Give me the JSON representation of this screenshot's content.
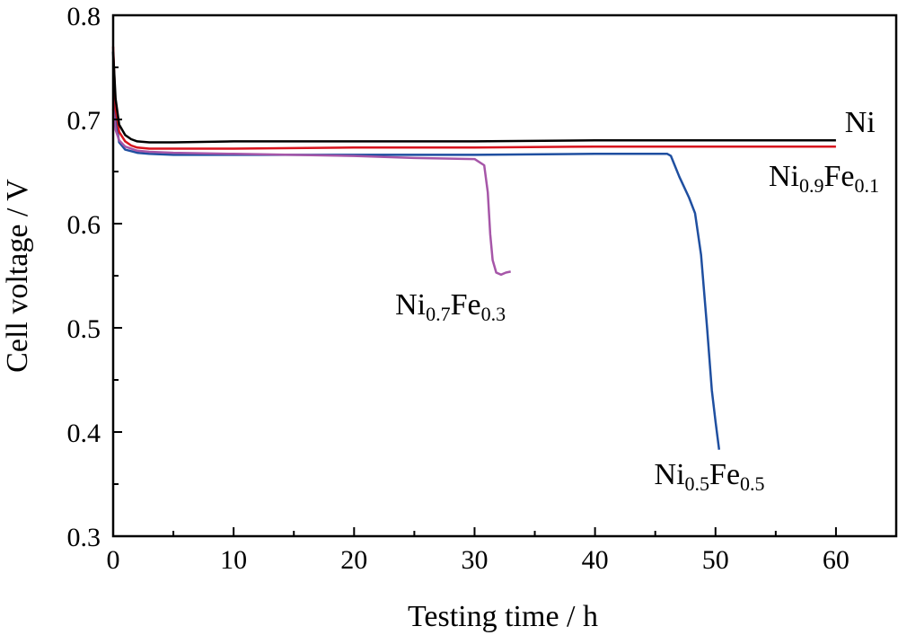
{
  "chart_data": {
    "type": "line",
    "title": "",
    "xlabel": "Testing time / h",
    "ylabel": "Cell voltage / V",
    "xlim": [
      0,
      65
    ],
    "ylim": [
      0.3,
      0.8
    ],
    "xticks": [
      "0",
      "10",
      "20",
      "30",
      "40",
      "50",
      "60"
    ],
    "xtick_values": [
      0,
      10,
      20,
      30,
      40,
      50,
      60
    ],
    "yticks": [
      "0.3",
      "0.4",
      "0.5",
      "0.6",
      "0.7",
      "0.8"
    ],
    "ytick_values": [
      0.3,
      0.4,
      0.5,
      0.6,
      0.7,
      0.8
    ],
    "grid": false,
    "series": [
      {
        "name": "Ni",
        "color": "#000000",
        "x": [
          0,
          0.2,
          0.5,
          1,
          1.5,
          2,
          3,
          5,
          10,
          20,
          30,
          40,
          50,
          60
        ],
        "y": [
          0.765,
          0.72,
          0.695,
          0.685,
          0.681,
          0.679,
          0.678,
          0.678,
          0.679,
          0.679,
          0.679,
          0.68,
          0.68,
          0.68
        ]
      },
      {
        "name": "Ni0.9Fe0.1",
        "color": "#d7141e",
        "x": [
          0,
          0.2,
          0.5,
          1,
          1.5,
          2,
          3,
          5,
          10,
          20,
          30,
          40,
          50,
          60
        ],
        "y": [
          0.77,
          0.71,
          0.688,
          0.679,
          0.675,
          0.673,
          0.672,
          0.672,
          0.672,
          0.673,
          0.673,
          0.674,
          0.674,
          0.674
        ]
      },
      {
        "name": "Ni0.7Fe0.3",
        "color": "#a656a8",
        "x": [
          0,
          0.2,
          0.5,
          1,
          2,
          3,
          5,
          10,
          20,
          25,
          30,
          30.8,
          31.1,
          31.3,
          31.5,
          31.8,
          32.2,
          32.6,
          33
        ],
        "y": [
          0.71,
          0.69,
          0.68,
          0.674,
          0.67,
          0.669,
          0.668,
          0.667,
          0.665,
          0.663,
          0.662,
          0.656,
          0.63,
          0.59,
          0.565,
          0.553,
          0.551,
          0.553,
          0.554
        ]
      },
      {
        "name": "Ni0.5Fe0.5",
        "color": "#1f4fa0",
        "x": [
          0,
          0.2,
          0.5,
          1,
          2,
          3,
          5,
          10,
          20,
          30,
          40,
          45,
          46,
          46.3,
          47,
          47.8,
          48.3,
          48.8,
          49.3,
          49.7,
          50.0,
          50.3
        ],
        "y": [
          0.765,
          0.7,
          0.678,
          0.671,
          0.668,
          0.667,
          0.666,
          0.666,
          0.666,
          0.666,
          0.667,
          0.667,
          0.667,
          0.665,
          0.645,
          0.625,
          0.61,
          0.57,
          0.5,
          0.44,
          0.41,
          0.383
        ]
      }
    ],
    "annotations": [
      {
        "base1": "Ni",
        "sub1": "",
        "base2": "",
        "sub2": "",
        "x": 62,
        "y": 0.688
      },
      {
        "base1": "Ni",
        "sub1": "0.9",
        "base2": "Fe",
        "sub2": "0.1",
        "x": 59,
        "y": 0.636
      },
      {
        "base1": "Ni",
        "sub1": "0.7",
        "base2": "Fe",
        "sub2": "0.3",
        "x": 28,
        "y": 0.513
      },
      {
        "base1": "Ni",
        "sub1": "0.5",
        "base2": "Fe",
        "sub2": "0.5",
        "x": 49.5,
        "y": 0.35
      }
    ]
  }
}
